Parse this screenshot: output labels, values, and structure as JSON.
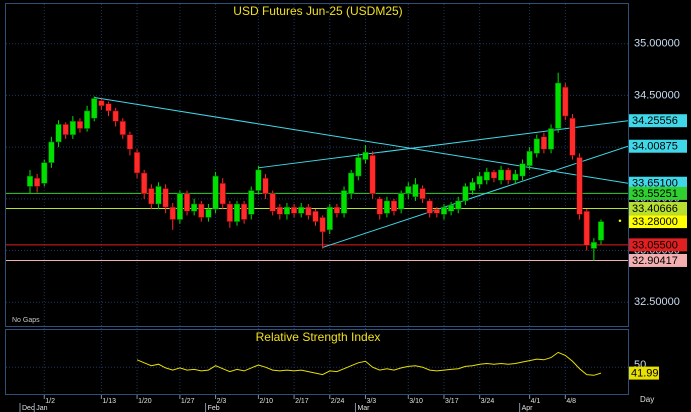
{
  "chart_data": {
    "type": "candlestick",
    "title": "USD Futures Jun-25 (USDM25)",
    "note": "No Gaps",
    "x_unit": "Day",
    "categories": [
      null,
      null,
      "1/2",
      null,
      null,
      null,
      null,
      null,
      null,
      null,
      "1/13",
      null,
      null,
      null,
      null,
      "1/20",
      null,
      null,
      null,
      null,
      null,
      "1/27",
      null,
      null,
      null,
      null,
      "2/3",
      null,
      null,
      null,
      null,
      null,
      "2/10",
      null,
      null,
      null,
      null,
      "2/17",
      null,
      null,
      null,
      null,
      "2/24",
      null,
      null,
      null,
      null,
      "3/3",
      null,
      null,
      null,
      null,
      null,
      "3/10",
      null,
      null,
      null,
      null,
      "3/17",
      null,
      null,
      null,
      null,
      "3/24",
      null,
      null,
      null,
      null,
      null,
      null,
      "4/1",
      null,
      null,
      null,
      null,
      "4/8",
      null,
      null,
      null,
      null,
      null
    ],
    "months": [
      "Dec",
      null,
      "Jan",
      null,
      null,
      null,
      null,
      null,
      null,
      null,
      null,
      null,
      null,
      null,
      null,
      null,
      null,
      null,
      null,
      null,
      null,
      null,
      null,
      null,
      null,
      null,
      "Feb",
      null,
      null,
      null,
      null,
      null,
      null,
      null,
      null,
      null,
      null,
      null,
      null,
      null,
      null,
      null,
      null,
      null,
      null,
      null,
      null,
      "Mar",
      null,
      null,
      null,
      null,
      null,
      null,
      null,
      null,
      null,
      null,
      null,
      null,
      null,
      null,
      null,
      null,
      null,
      null,
      null,
      null,
      null,
      null,
      "Apr",
      null,
      null,
      null,
      null,
      null,
      null,
      null,
      null,
      null,
      null
    ],
    "open": [
      33.62,
      33.7,
      33.65,
      33.85,
      34.05,
      34.22,
      34.12,
      34.25,
      34.18,
      34.28,
      34.45,
      34.42,
      34.35,
      34.25,
      34.12,
      33.95,
      33.75,
      33.6,
      33.45,
      33.6,
      33.42,
      33.3,
      33.55,
      33.38,
      33.45,
      33.32,
      33.4,
      33.65,
      33.45,
      33.28,
      33.45,
      33.35,
      33.58,
      33.7,
      33.55,
      33.42,
      33.35,
      33.42,
      33.36,
      33.42,
      33.38,
      33.32,
      33.2,
      33.42,
      33.36,
      33.55,
      33.72,
      33.88,
      33.92,
      33.5,
      33.36,
      33.48,
      33.4,
      33.55,
      33.52,
      33.6,
      33.48,
      33.4,
      33.35,
      33.38,
      33.4,
      33.48,
      33.58,
      33.64,
      33.68,
      33.76,
      33.68,
      33.78,
      33.68,
      33.72,
      33.82,
      33.94,
      34.1,
      33.98,
      34.18,
      34.58,
      34.28,
      33.9,
      33.38,
      33.02,
      33.1
    ],
    "high": [
      33.78,
      33.74,
      33.88,
      34.1,
      34.26,
      34.24,
      34.3,
      34.28,
      34.4,
      34.49,
      34.47,
      34.44,
      34.38,
      34.28,
      34.15,
      33.98,
      33.78,
      33.64,
      33.66,
      33.64,
      33.46,
      33.58,
      33.58,
      33.5,
      33.48,
      33.45,
      33.76,
      33.7,
      33.48,
      33.48,
      33.48,
      33.62,
      33.82,
      33.74,
      33.58,
      33.45,
      33.46,
      33.45,
      33.46,
      33.45,
      33.4,
      33.34,
      33.45,
      33.45,
      33.62,
      33.78,
      33.94,
      34.02,
      33.96,
      33.52,
      33.52,
      33.5,
      33.58,
      33.66,
      33.7,
      33.63,
      33.5,
      33.42,
      33.45,
      33.47,
      33.52,
      33.65,
      33.7,
      33.76,
      33.8,
      33.78,
      33.82,
      33.8,
      33.78,
      33.88,
      34.0,
      34.12,
      34.14,
      34.22,
      34.72,
      34.62,
      34.32,
      33.94,
      33.4,
      33.12,
      33.3
    ],
    "low": [
      33.55,
      33.56,
      33.62,
      33.8,
      34.0,
      34.08,
      34.08,
      34.14,
      34.15,
      34.25,
      34.36,
      34.3,
      34.2,
      34.08,
      33.92,
      33.7,
      33.5,
      33.4,
      33.4,
      33.36,
      33.2,
      33.26,
      33.34,
      33.34,
      33.28,
      33.28,
      33.36,
      33.4,
      33.22,
      33.24,
      33.26,
      33.3,
      33.54,
      33.5,
      33.34,
      33.3,
      33.3,
      33.32,
      33.32,
      33.3,
      33.24,
      33.02,
      33.16,
      33.32,
      33.32,
      33.5,
      33.68,
      33.84,
      33.5,
      33.3,
      33.32,
      33.34,
      33.36,
      33.5,
      33.48,
      33.46,
      33.32,
      33.32,
      33.3,
      33.34,
      33.36,
      33.44,
      33.54,
      33.6,
      33.64,
      33.66,
      33.64,
      33.64,
      33.64,
      33.68,
      33.78,
      33.9,
      33.94,
      33.94,
      34.14,
      34.26,
      33.88,
      33.3,
      33.0,
      32.9,
      33.06
    ],
    "close": [
      33.72,
      33.62,
      33.85,
      34.05,
      34.22,
      34.12,
      34.25,
      34.18,
      34.35,
      34.47,
      34.4,
      34.35,
      34.25,
      34.12,
      33.98,
      33.75,
      33.55,
      33.45,
      33.62,
      33.42,
      33.3,
      33.55,
      33.38,
      33.45,
      33.32,
      33.4,
      33.72,
      33.45,
      33.28,
      33.45,
      33.3,
      33.58,
      33.78,
      33.55,
      33.38,
      33.35,
      33.42,
      33.36,
      33.42,
      33.34,
      33.28,
      33.18,
      33.42,
      33.36,
      33.58,
      33.75,
      33.9,
      33.95,
      33.55,
      33.35,
      33.48,
      33.38,
      33.55,
      33.62,
      33.64,
      33.5,
      33.36,
      33.36,
      33.42,
      33.44,
      33.48,
      33.62,
      33.66,
      33.72,
      33.76,
      33.7,
      33.78,
      33.68,
      33.74,
      33.84,
      33.96,
      34.08,
      33.98,
      34.18,
      34.62,
      34.3,
      33.92,
      33.35,
      33.05,
      33.08,
      33.28
    ],
    "up_color": "#00e000",
    "down_color": "#ff2a2a",
    "ylim": [
      32.28,
      35.21
    ],
    "yticks": [
      {
        "value": 32.5,
        "label": "32.50000"
      },
      {
        "value": 33,
        "label": "33.00000"
      },
      {
        "value": 33.5,
        "label": "33.50000"
      },
      {
        "value": 34,
        "label": "34.00000"
      },
      {
        "value": 34.5,
        "label": "34.50000"
      },
      {
        "value": 35,
        "label": "35.00000"
      }
    ],
    "grid": true,
    "trendlines": [
      {
        "from_index": 9,
        "from_value": 34.48,
        "to": {
          "value": 33.651,
          "label": "33.65100"
        },
        "color": "#40d8e8"
      },
      {
        "from_index": 41,
        "from_value": 33.03,
        "to": {
          "value": 34.00875,
          "label": "34.00875"
        },
        "color": "#40d8e8"
      },
      {
        "from_index": 32,
        "from_value": 33.8,
        "to": {
          "value": 34.25556,
          "label": "34.25556"
        },
        "color": "#40d8e8"
      }
    ],
    "levels": [
      {
        "value": 33.55251,
        "label": "33.55251",
        "color": "#30d030",
        "line": true
      },
      {
        "value": 33.40666,
        "label": "33.40666",
        "color": "#b8e030",
        "line": true
      },
      {
        "value": 33.28,
        "label": "33.28000",
        "color": "#ffff00",
        "line": false
      },
      {
        "value": 33.055,
        "label": "33.05500",
        "color": "#e02020",
        "line": true
      },
      {
        "value": 32.90417,
        "label": "32.90417",
        "color": "#f4b0b0",
        "line": true
      }
    ],
    "rsi": {
      "title": "Relative Strength Index",
      "color": "#e8e000",
      "ylim": [
        15,
        95
      ],
      "yticks": [
        50
      ],
      "values": [
        null,
        null,
        null,
        null,
        null,
        null,
        null,
        null,
        null,
        null,
        null,
        null,
        null,
        null,
        null,
        60,
        56,
        52,
        54,
        49,
        46,
        49,
        46,
        47,
        45,
        46,
        52,
        48,
        44,
        47,
        45,
        49,
        53,
        50,
        46,
        45,
        46,
        45,
        46,
        44,
        42,
        40,
        45,
        44,
        48,
        52,
        56,
        58,
        50,
        46,
        48,
        46,
        49,
        51,
        52,
        50,
        46,
        45,
        46,
        47,
        48,
        51,
        52,
        54,
        55,
        54,
        55,
        54,
        55,
        57,
        59,
        61,
        60,
        63,
        70,
        66,
        58,
        48,
        40,
        39,
        41.99
      ]
    }
  }
}
